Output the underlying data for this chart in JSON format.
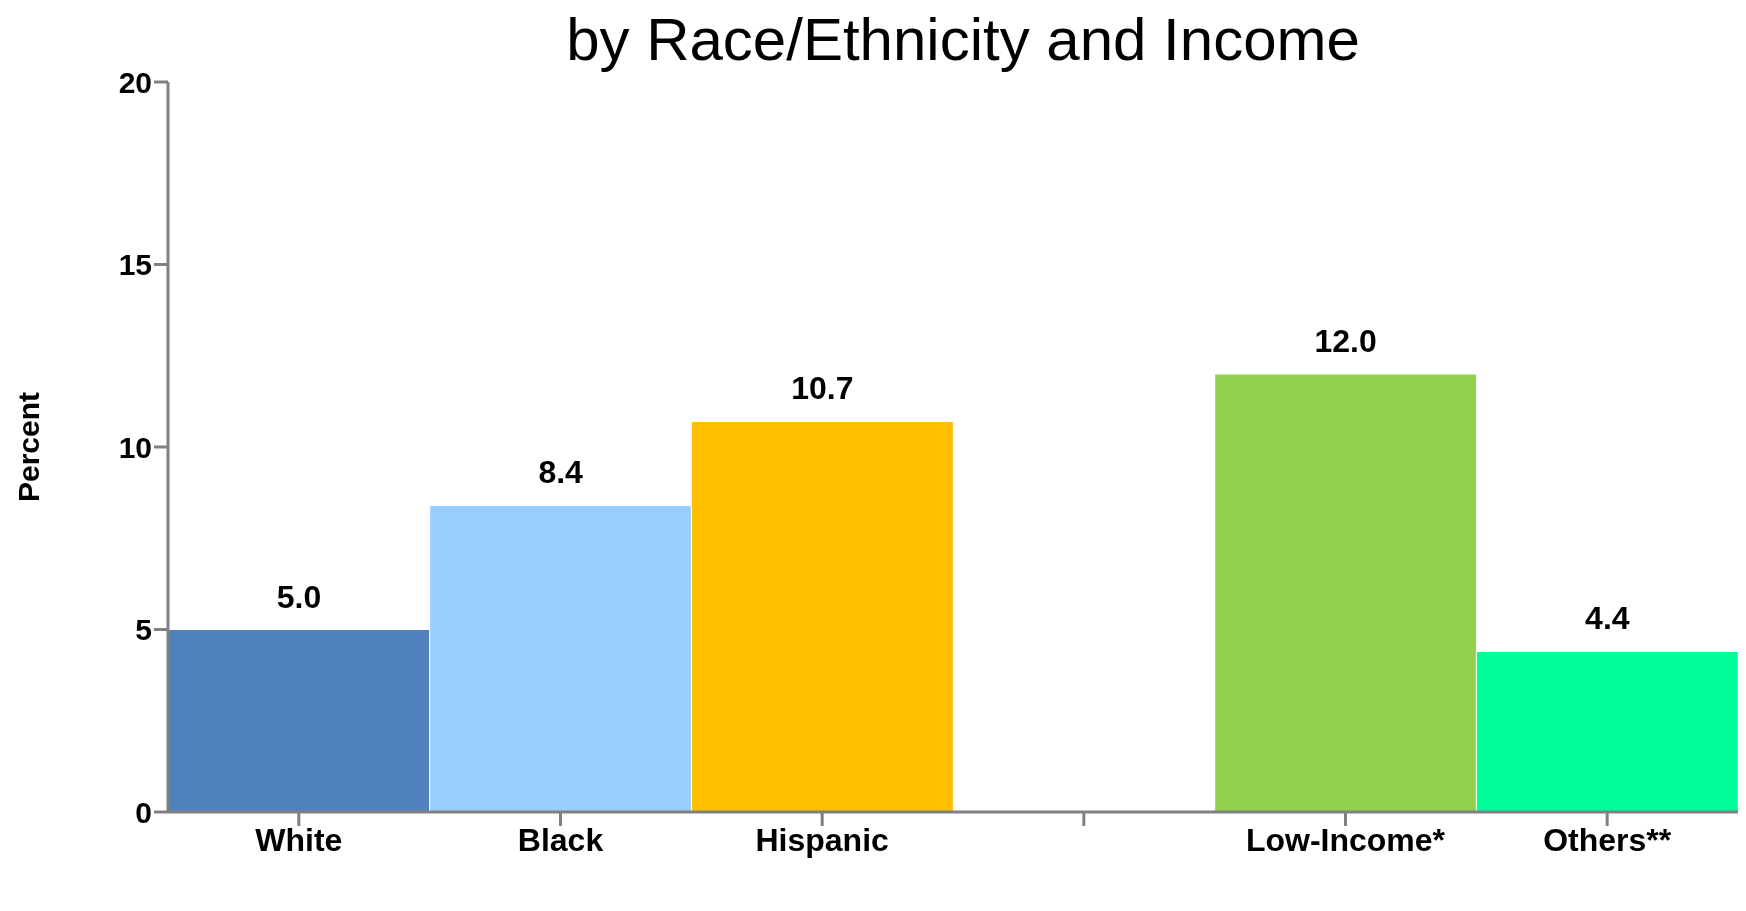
{
  "chart_data": {
    "type": "bar",
    "title": "by Race/Ethnicity and Income",
    "ylabel": "Percent",
    "categories": [
      "White",
      "Black",
      "Hispanic",
      null,
      "Low-Income*",
      "Others**"
    ],
    "values": [
      5.0,
      8.4,
      10.7,
      null,
      12.0,
      4.4
    ],
    "colors": [
      "#4f81bd",
      "#99ccff",
      "#ffc000",
      "#ffffff",
      "#92d050",
      "#00ff99"
    ],
    "value_labels": [
      "5.0",
      "8.4",
      "10.7",
      null,
      "12.0",
      "4.4"
    ],
    "ylim": [
      0,
      20
    ],
    "yticks": [
      0,
      5,
      10,
      15,
      20
    ],
    "grid": false,
    "legend": false
  }
}
